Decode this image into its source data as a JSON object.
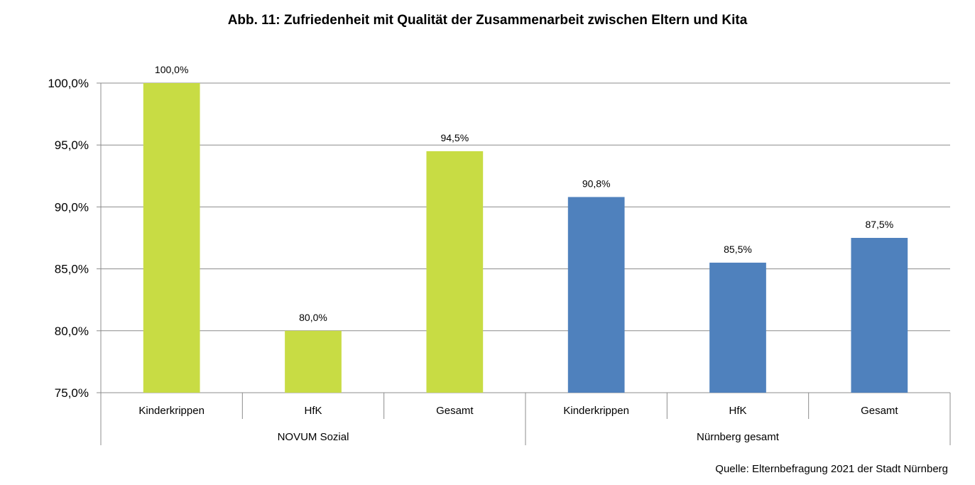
{
  "chart_data": {
    "type": "bar",
    "title": "Abb. 11: Zufriedenheit mit Qualität der Zusammenarbeit zwischen Eltern und Kita",
    "source": "Quelle: Elternbefragung 2021 der Stadt Nürnberg",
    "ylim": [
      75,
      100
    ],
    "yticks": [
      75,
      80,
      85,
      90,
      95,
      100
    ],
    "ytick_labels": [
      "75,0%",
      "80,0%",
      "85,0%",
      "90,0%",
      "95,0%",
      "100,0%"
    ],
    "grid": true,
    "groups": [
      {
        "name": "NOVUM Sozial",
        "color": "#c8dc44",
        "categories": [
          "Kinderkrippen",
          "HfK",
          "Gesamt"
        ],
        "values": [
          100.0,
          80.0,
          94.5
        ],
        "labels": [
          "100,0%",
          "80,0%",
          "94,5%"
        ]
      },
      {
        "name": "Nürnberg gesamt",
        "color": "#4f81bd",
        "categories": [
          "Kinderkrippen",
          "HfK",
          "Gesamt"
        ],
        "values": [
          90.8,
          85.5,
          87.5
        ],
        "labels": [
          "90,8%",
          "85,5%",
          "87,5%"
        ]
      }
    ]
  }
}
